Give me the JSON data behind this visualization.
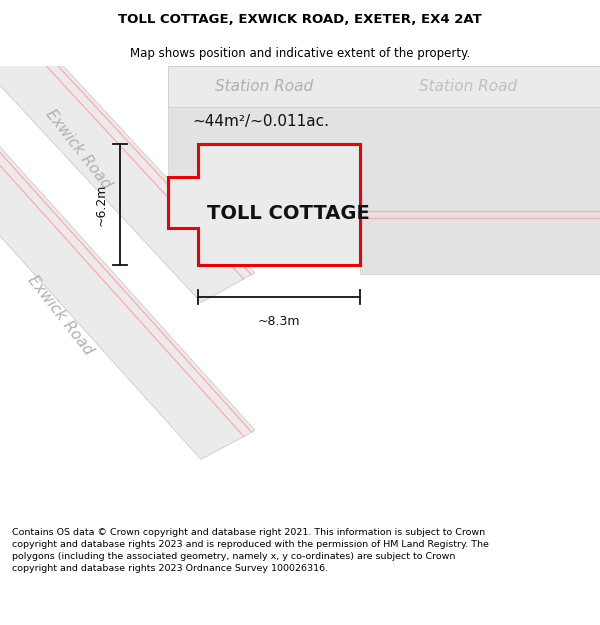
{
  "title": "TOLL COTTAGE, EXWICK ROAD, EXETER, EX4 2AT",
  "subtitle": "Map shows position and indicative extent of the property.",
  "footer": "Contains OS data © Crown copyright and database right 2021. This information is subject to Crown copyright and database rights 2023 and is reproduced with the permission of HM Land Registry. The polygons (including the associated geometry, namely x, y co-ordinates) are subject to Crown copyright and database rights 2023 Ordnance Survey 100026316.",
  "bg_color": "#ffffff",
  "map_bg": "#ffffff",
  "road_fill": "#ebebeb",
  "road_edge": "#cccccc",
  "road_text_color": "#b0b0b0",
  "property_fill": "#ebebeb",
  "property_edge": "#ee0000",
  "property_edge_width": 2.2,
  "dim_color": "#111111",
  "toll_cottage_text": "TOLL COTTAGE",
  "area_text": "~44m²/~0.011ac.",
  "width_label": "~8.3m",
  "height_label": "~6.2m",
  "station_road_label": "Station Road",
  "exwick_road_label": "Exwick Road",
  "title_fontsize": 9.5,
  "subtitle_fontsize": 8.5,
  "footer_fontsize": 6.8,
  "road_label_fontsize": 11,
  "area_fontsize": 11,
  "property_name_fontsize": 14,
  "dim_fontsize": 9
}
